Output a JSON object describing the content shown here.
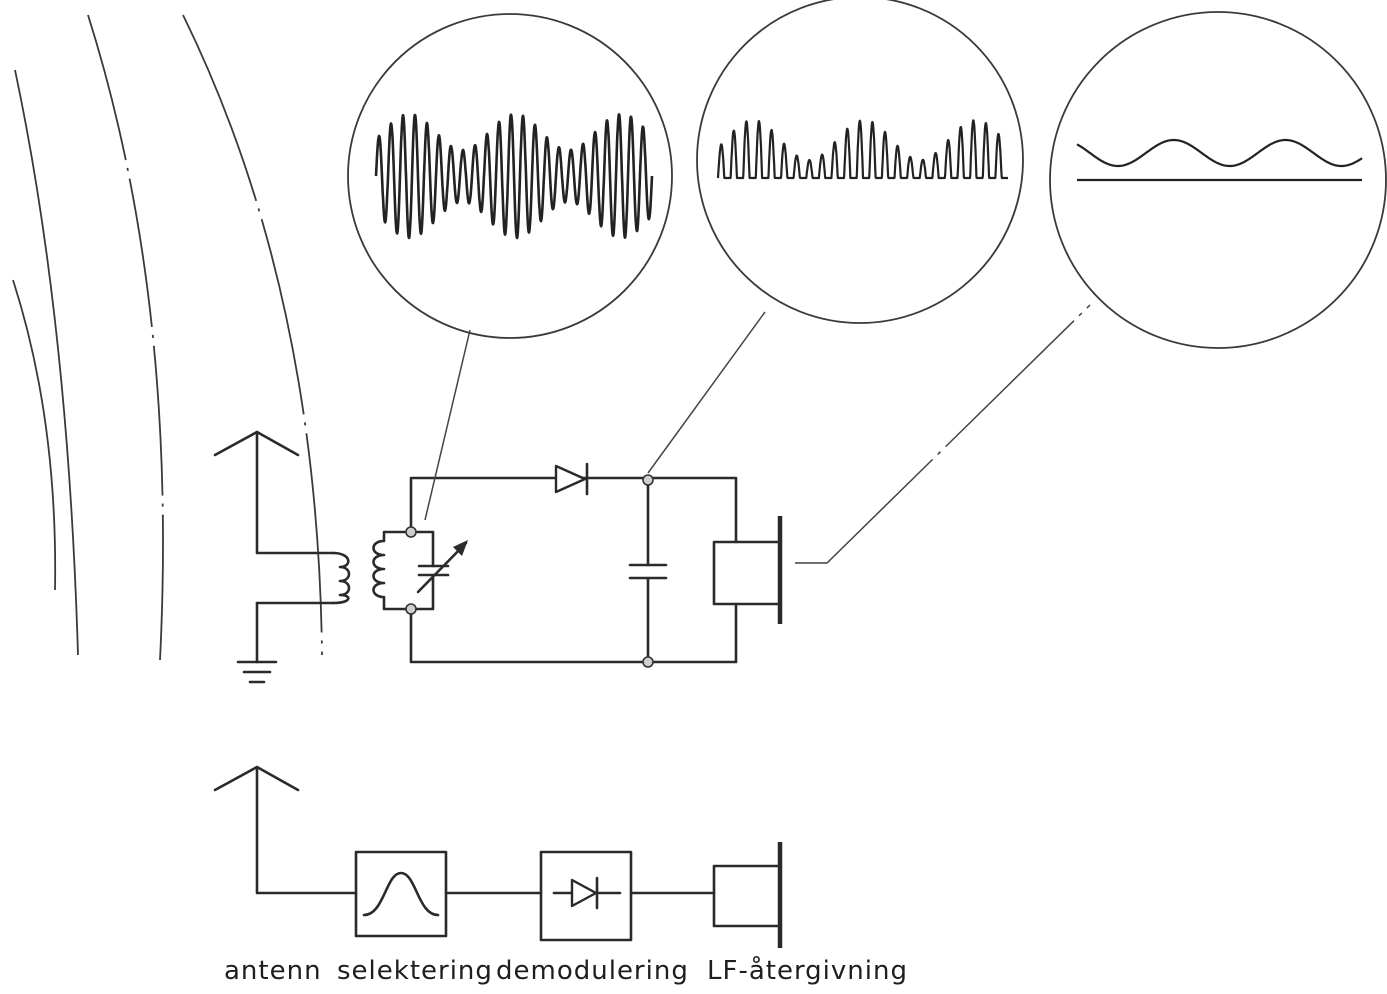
{
  "labels": {
    "antenna": "antenn",
    "selection": "selektering",
    "demodulation": "demodulering",
    "audio_output": "LF-återgivning"
  },
  "colors": {
    "ink": "#2a2a2a",
    "background": "#ffffff"
  }
}
